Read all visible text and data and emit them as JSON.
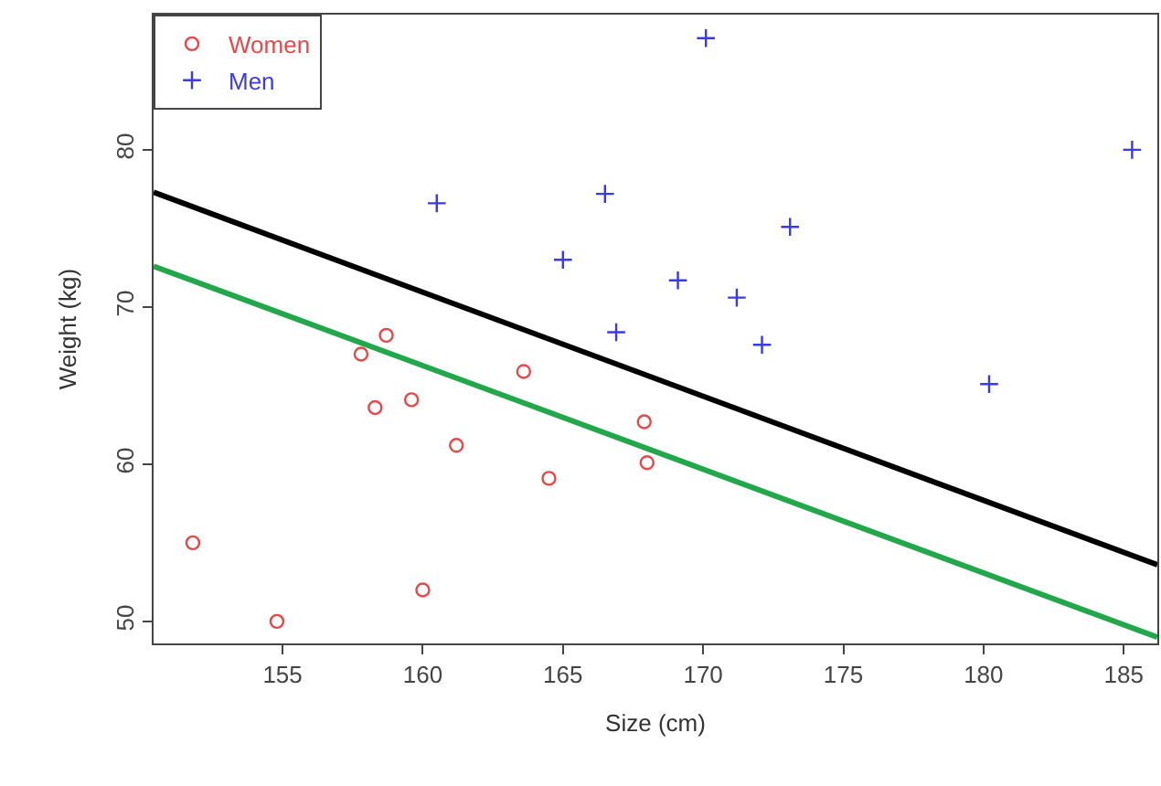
{
  "chart_data": {
    "type": "scatter",
    "xlabel": "Size (cm)",
    "ylabel": "Weight (kg)",
    "xlim": [
      150.4,
      186.2
    ],
    "ylim": [
      48.6,
      88.6
    ],
    "xticks": [
      155,
      160,
      165,
      170,
      175,
      180,
      185
    ],
    "yticks": [
      50,
      60,
      70,
      80
    ],
    "legend": "top left",
    "series": [
      {
        "name": "Women",
        "color": "#e8474a",
        "marker": "circle",
        "x": [
          151.8,
          154.8,
          157.8,
          158.3,
          158.7,
          159.6,
          160.0,
          161.2,
          163.6,
          164.5,
          167.9,
          168.0
        ],
        "values": [
          55.0,
          50.0,
          67.0,
          63.6,
          68.2,
          64.1,
          52.0,
          61.2,
          65.9,
          59.1,
          62.7,
          60.1
        ]
      },
      {
        "name": "Men",
        "color": "#3a3ae8",
        "marker": "cross",
        "x": [
          160.5,
          165.0,
          166.5,
          166.9,
          169.1,
          170.1,
          171.2,
          172.1,
          173.1,
          180.2,
          185.3
        ],
        "values": [
          76.6,
          73.0,
          77.2,
          68.4,
          71.7,
          87.1,
          70.6,
          67.6,
          75.1,
          65.1,
          80.0
        ]
      },
      {
        "type": "line",
        "color": "#000000",
        "x": [
          150.4,
          186.2
        ],
        "values": [
          77.3,
          53.6
        ]
      },
      {
        "type": "line",
        "color": "#22a84a",
        "x": [
          150.4,
          186.2
        ],
        "values": [
          72.6,
          49.0
        ]
      }
    ]
  }
}
